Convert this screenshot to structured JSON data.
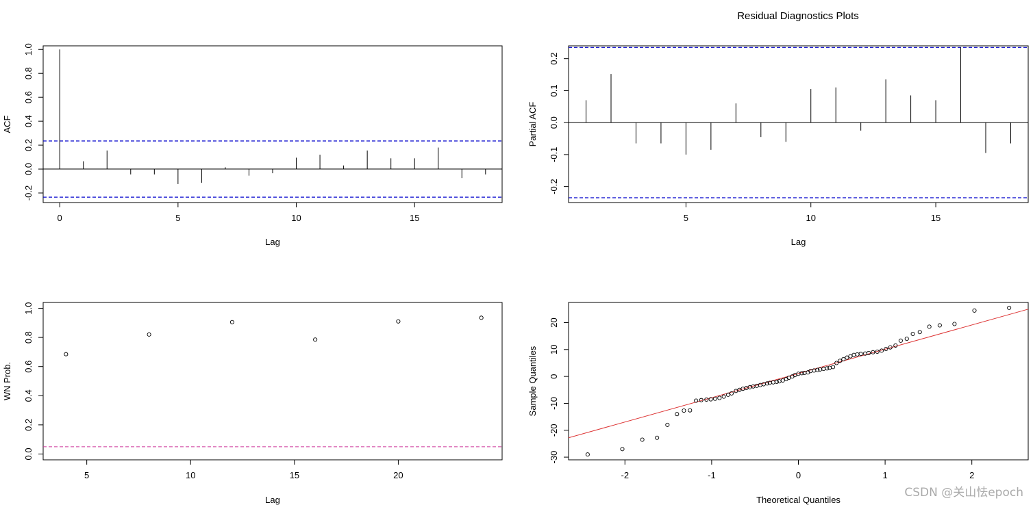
{
  "title": "Residual Diagnostics Plots",
  "watermark": "CSDN @关山怯epoch",
  "chart_data": [
    {
      "id": "acf",
      "type": "bar",
      "style": "spikes",
      "xlabel": "Lag",
      "ylabel": "ACF",
      "xlim": [
        -0.7,
        18.7
      ],
      "ylim": [
        -0.28,
        1.03
      ],
      "xticks": [
        0,
        5,
        10,
        15
      ],
      "yticks": [
        -0.2,
        0.0,
        0.2,
        0.4,
        0.6,
        0.8,
        1.0
      ],
      "ytick_labels": [
        "-0.2",
        "0.0",
        "0.2",
        "0.4",
        "0.6",
        "0.8",
        "1.0"
      ],
      "x": [
        0,
        1,
        2,
        3,
        4,
        5,
        6,
        7,
        8,
        9,
        10,
        11,
        12,
        13,
        14,
        15,
        16,
        17,
        18
      ],
      "values": [
        1.0,
        0.065,
        0.155,
        -0.045,
        -0.045,
        -0.125,
        -0.115,
        0.015,
        -0.055,
        -0.035,
        0.095,
        0.12,
        0.03,
        0.155,
        0.09,
        0.09,
        0.18,
        -0.075,
        -0.045
      ],
      "conf_bounds": [
        0.235,
        -0.235
      ],
      "conf_color": "#0000cc"
    },
    {
      "id": "pacf",
      "type": "bar",
      "style": "spikes",
      "xlabel": "Lag",
      "ylabel": "Partial ACF",
      "xlim": [
        0.3,
        18.7
      ],
      "ylim": [
        -0.25,
        0.24
      ],
      "xticks": [
        5,
        10,
        15
      ],
      "yticks": [
        -0.2,
        -0.1,
        0.0,
        0.1,
        0.2
      ],
      "ytick_labels": [
        "-0.2",
        "-0.1",
        "0.0",
        "0.1",
        "0.2"
      ],
      "x": [
        1,
        2,
        3,
        4,
        5,
        6,
        7,
        8,
        9,
        10,
        11,
        12,
        13,
        14,
        15,
        16,
        17,
        18
      ],
      "values": [
        0.07,
        0.152,
        -0.065,
        -0.065,
        -0.1,
        -0.085,
        0.06,
        -0.045,
        -0.06,
        0.105,
        0.11,
        -0.025,
        0.135,
        0.085,
        0.07,
        0.235,
        -0.095,
        -0.065
      ],
      "conf_bounds": [
        0.235,
        -0.235
      ],
      "conf_color": "#0000cc"
    },
    {
      "id": "ljung-box",
      "type": "scatter",
      "xlabel": "Lag",
      "ylabel": "WN Prob.",
      "xlim": [
        2.9,
        25.0
      ],
      "ylim": [
        -0.04,
        1.04
      ],
      "xticks": [
        5,
        10,
        15,
        20
      ],
      "yticks": [
        0.0,
        0.2,
        0.4,
        0.6,
        0.8,
        1.0
      ],
      "ytick_labels": [
        "0.0",
        "0.2",
        "0.4",
        "0.6",
        "0.8",
        "1.0"
      ],
      "x": [
        4,
        8,
        12,
        16,
        20,
        24
      ],
      "values": [
        0.685,
        0.82,
        0.905,
        0.785,
        0.91,
        0.935
      ],
      "ref_line": 0.05,
      "ref_color": "#cc3399"
    },
    {
      "id": "qq",
      "type": "scatter",
      "xlabel": "Theoretical Quantiles",
      "ylabel": "Sample Quantiles",
      "xlim": [
        -2.65,
        2.65
      ],
      "ylim": [
        -31,
        27.5
      ],
      "xticks": [
        -2,
        -1,
        0,
        1,
        2
      ],
      "yticks": [
        -30,
        -20,
        -10,
        0,
        10,
        20
      ],
      "ytick_labels": [
        "-30",
        "-20",
        "-10",
        "0",
        "10",
        "20"
      ],
      "x": [
        -2.43,
        -2.03,
        -1.8,
        -1.63,
        -1.51,
        -1.4,
        -1.32,
        -1.25,
        -1.18,
        -1.12,
        -1.06,
        -1.01,
        -0.96,
        -0.91,
        -0.86,
        -0.81,
        -0.77,
        -0.72,
        -0.68,
        -0.64,
        -0.6,
        -0.56,
        -0.52,
        -0.48,
        -0.44,
        -0.4,
        -0.36,
        -0.33,
        -0.29,
        -0.25,
        -0.22,
        -0.18,
        -0.14,
        -0.11,
        -0.07,
        -0.04,
        0.0,
        0.04,
        0.07,
        0.11,
        0.14,
        0.18,
        0.22,
        0.25,
        0.29,
        0.33,
        0.36,
        0.4,
        0.44,
        0.48,
        0.52,
        0.56,
        0.6,
        0.64,
        0.68,
        0.72,
        0.77,
        0.81,
        0.86,
        0.91,
        0.96,
        1.01,
        1.06,
        1.12,
        1.18,
        1.25,
        1.32,
        1.4,
        1.51,
        1.63,
        1.8,
        2.03,
        2.43
      ],
      "values": [
        -29.0,
        -27.0,
        -23.5,
        -22.8,
        -18.0,
        -14.0,
        -12.7,
        -12.6,
        -9.0,
        -8.8,
        -8.6,
        -8.5,
        -8.3,
        -8.0,
        -7.5,
        -6.8,
        -6.3,
        -5.4,
        -5.0,
        -4.6,
        -4.3,
        -4.0,
        -3.7,
        -3.5,
        -3.2,
        -2.9,
        -2.6,
        -2.4,
        -2.2,
        -2.0,
        -1.8,
        -1.5,
        -1.0,
        -0.5,
        0.0,
        0.5,
        1.0,
        1.2,
        1.3,
        1.5,
        2.0,
        2.2,
        2.4,
        2.6,
        2.8,
        3.0,
        3.2,
        3.5,
        5.0,
        5.8,
        6.4,
        7.0,
        7.5,
        8.0,
        8.2,
        8.4,
        8.5,
        8.7,
        9.0,
        9.2,
        9.6,
        10.2,
        10.8,
        11.5,
        13.3,
        14.0,
        15.8,
        16.5,
        18.5,
        19.0,
        19.5,
        24.5,
        25.5
      ],
      "ref_line_points": [
        [
          -2.65,
          -22.8
        ],
        [
          2.65,
          25.0
        ]
      ],
      "ref_color": "#dd3333"
    }
  ]
}
